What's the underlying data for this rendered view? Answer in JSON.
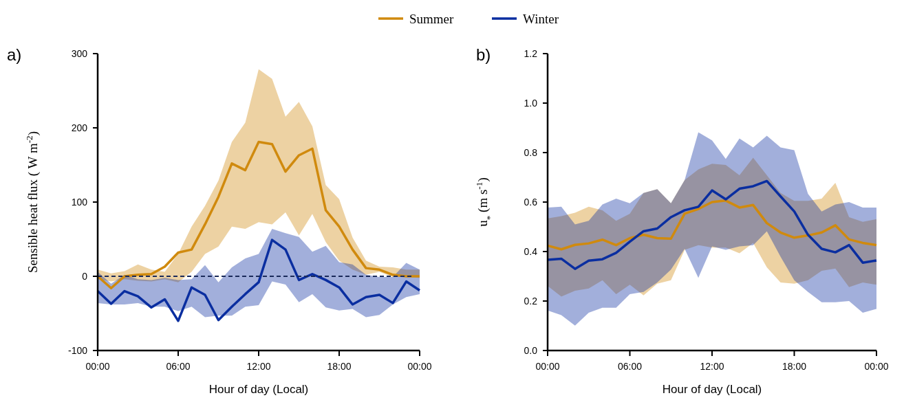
{
  "chart_data": [
    {
      "type": "line",
      "title": "a)",
      "xlabel": "Hour of  day (Local)",
      "ylabel": "Sensible heat flux ( W m$^{-2}$)",
      "x": [
        0,
        1,
        2,
        3,
        4,
        5,
        6,
        7,
        8,
        9,
        10,
        11,
        12,
        13,
        14,
        15,
        16,
        17,
        18,
        19,
        20,
        21,
        22,
        23,
        24
      ],
      "xlim": [
        0,
        24
      ],
      "xticks": [
        {
          "value": 0,
          "label": "00:00"
        },
        {
          "value": 6,
          "label": "06:00"
        },
        {
          "value": 12,
          "label": "12:00"
        },
        {
          "value": 18,
          "label": "18:00"
        },
        {
          "value": 24,
          "label": "00:00"
        }
      ],
      "ylim": [
        -100,
        300
      ],
      "yticks": [
        -100,
        0,
        100,
        200,
        300
      ],
      "legend": "top",
      "grid": false,
      "ref_lines": [
        {
          "axis": "y",
          "value": 0,
          "color": "#1a2a5a",
          "line_style": "dashed"
        }
      ],
      "series": [
        {
          "name": "Summer",
          "color": "#d08a0e",
          "values": [
            0,
            -16,
            0,
            2,
            3,
            13,
            32,
            36,
            70,
            107,
            152,
            143,
            181,
            178,
            141,
            163,
            172,
            89,
            67,
            36,
            11,
            9,
            2,
            0,
            0
          ],
          "lower": [
            -4,
            -7,
            -4,
            -6,
            -7,
            -4,
            -8,
            6,
            30,
            40,
            67,
            64,
            73,
            70,
            86,
            55,
            84,
            46,
            21,
            9,
            2,
            6,
            -1,
            -1,
            -2
          ],
          "upper": [
            9,
            4,
            7,
            16,
            9,
            6,
            30,
            67,
            95,
            129,
            181,
            207,
            279,
            266,
            215,
            235,
            202,
            123,
            104,
            52,
            21,
            13,
            12,
            9,
            9
          ]
        },
        {
          "name": "Winter",
          "color": "#0a2ea0",
          "values": [
            -20,
            -37,
            -20,
            -27,
            -42,
            -31,
            -60,
            -15,
            -25,
            -59,
            -41,
            -24,
            -8,
            49,
            36,
            -5,
            3,
            -5,
            -15,
            -38,
            -28,
            -25,
            -36,
            -7,
            -19
          ],
          "lower": [
            -36,
            -38,
            -38,
            -36,
            -41,
            -41,
            -47,
            -41,
            -55,
            -53,
            -53,
            -41,
            -39,
            -7,
            -11,
            -35,
            -24,
            -42,
            -46,
            -44,
            -55,
            -52,
            -38,
            -28,
            -24
          ],
          "upper": [
            6,
            -10,
            2,
            -4,
            -5,
            -2,
            -5,
            -4,
            15,
            -8,
            12,
            24,
            30,
            64,
            58,
            53,
            33,
            41,
            19,
            16,
            2,
            -1,
            -1,
            18,
            9
          ]
        }
      ]
    },
    {
      "type": "line",
      "title": "b)",
      "xlabel": "Hour of  day (Local)",
      "ylabel": "u$_{*}$  (m s$^{-1}$)",
      "x": [
        0,
        1,
        2,
        3,
        4,
        5,
        6,
        7,
        8,
        9,
        10,
        11,
        12,
        13,
        14,
        15,
        16,
        17,
        18,
        19,
        20,
        21,
        22,
        23,
        24
      ],
      "xlim": [
        0,
        24
      ],
      "xticks": [
        {
          "value": 0,
          "label": "00:00"
        },
        {
          "value": 6,
          "label": "06:00"
        },
        {
          "value": 12,
          "label": "12:00"
        },
        {
          "value": 18,
          "label": "18:00"
        },
        {
          "value": 24,
          "label": "00:00"
        }
      ],
      "ylim": [
        0,
        1.2
      ],
      "yticks": [
        {
          "value": 0,
          "label": "0.0"
        },
        {
          "value": 0.2,
          "label": "0.2"
        },
        {
          "value": 0.4,
          "label": "0.4"
        },
        {
          "value": 0.6,
          "label": "0.6"
        },
        {
          "value": 0.8,
          "label": "0.8"
        },
        {
          "value": 1,
          "label": "1.0"
        },
        {
          "value": 1.2,
          "label": "1.2"
        }
      ],
      "grid": false,
      "series": [
        {
          "color": "#d08a0e",
          "values": [
            0.424,
            0.409,
            0.427,
            0.433,
            0.448,
            0.426,
            0.454,
            0.468,
            0.454,
            0.452,
            0.553,
            0.572,
            0.6,
            0.606,
            0.578,
            0.588,
            0.515,
            0.477,
            0.456,
            0.465,
            0.477,
            0.506,
            0.449,
            0.435,
            0.426
          ],
          "lower": [
            0.261,
            0.218,
            0.242,
            0.251,
            0.284,
            0.228,
            0.266,
            0.223,
            0.27,
            0.284,
            0.407,
            0.426,
            0.416,
            0.416,
            0.393,
            0.435,
            0.336,
            0.275,
            0.27,
            0.284,
            0.322,
            0.331,
            0.256,
            0.275,
            0.266
          ],
          "upper": [
            0.534,
            0.543,
            0.557,
            0.581,
            0.567,
            0.524,
            0.553,
            0.637,
            0.652,
            0.595,
            0.689,
            0.732,
            0.755,
            0.75,
            0.708,
            0.779,
            0.708,
            0.637,
            0.605,
            0.605,
            0.614,
            0.678,
            0.539,
            0.52,
            0.531
          ]
        },
        {
          "color": "#0a2ea0",
          "values": [
            0.367,
            0.371,
            0.33,
            0.363,
            0.369,
            0.395,
            0.44,
            0.482,
            0.493,
            0.539,
            0.567,
            0.581,
            0.647,
            0.611,
            0.654,
            0.664,
            0.685,
            0.623,
            0.562,
            0.468,
            0.411,
            0.397,
            0.426,
            0.355,
            0.364
          ],
          "lower": [
            0.162,
            0.143,
            0.101,
            0.153,
            0.173,
            0.173,
            0.228,
            0.237,
            0.275,
            0.327,
            0.411,
            0.294,
            0.421,
            0.407,
            0.421,
            0.426,
            0.482,
            0.379,
            0.284,
            0.237,
            0.195,
            0.195,
            0.2,
            0.153,
            0.168
          ],
          "upper": [
            0.578,
            0.581,
            0.51,
            0.524,
            0.59,
            0.614,
            0.595,
            0.637,
            0.652,
            0.595,
            0.689,
            0.882,
            0.849,
            0.774,
            0.857,
            0.821,
            0.868,
            0.821,
            0.81,
            0.633,
            0.562,
            0.59,
            0.6,
            0.578,
            0.578
          ]
        }
      ]
    }
  ]
}
